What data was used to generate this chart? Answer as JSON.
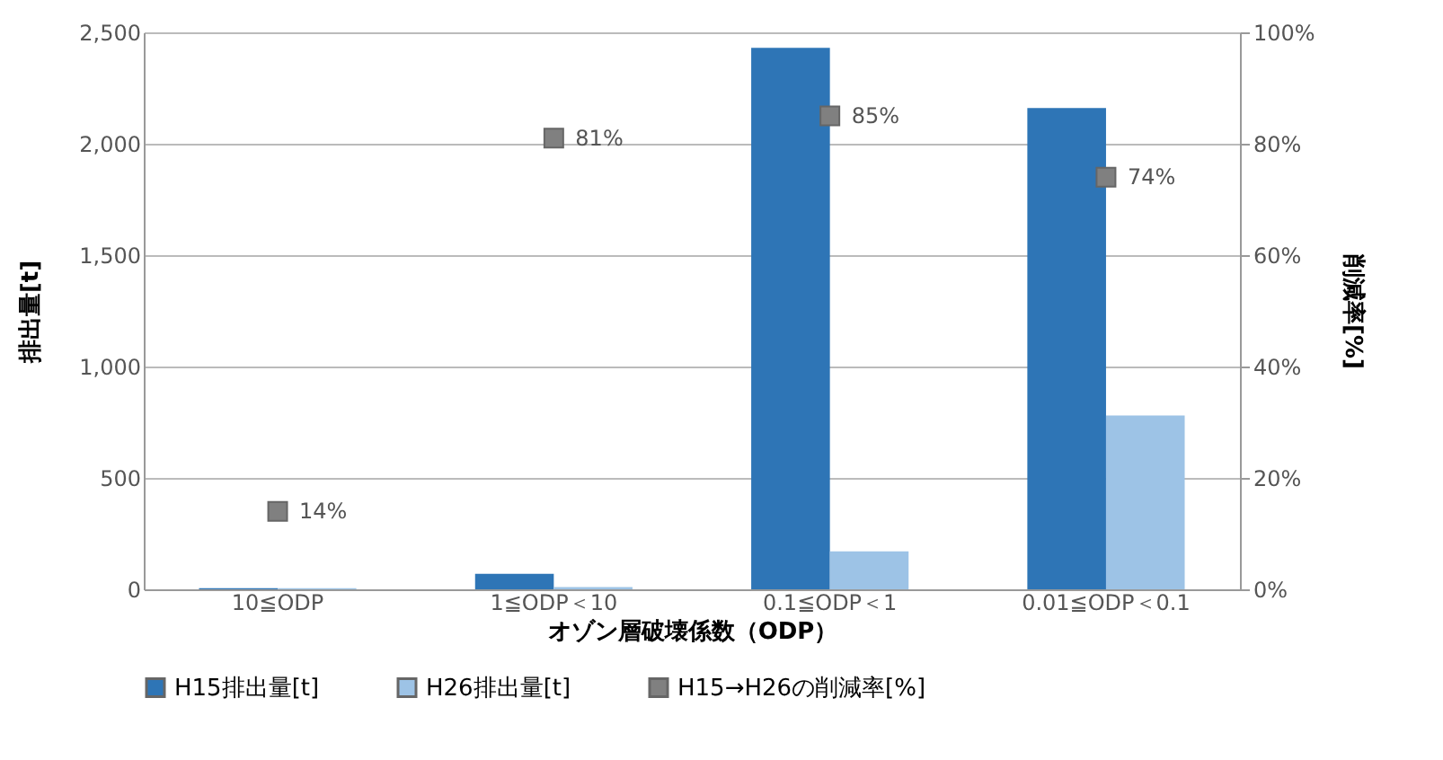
{
  "chart_data": {
    "type": "bar",
    "categories": [
      "10≦ODP",
      "1≦ODP＜10",
      "0.1≦ODP＜1",
      "0.01≦ODP＜0.1"
    ],
    "xlabel": "オゾン層破壊係数（ODP）",
    "ylabel": "排出量[t]",
    "y2label": "削減率[%]",
    "series": [
      {
        "name": "H15排出量[t]",
        "color": "#2e75b6",
        "values": [
          5,
          70,
          2430,
          2160
        ]
      },
      {
        "name": "H26排出量[t]",
        "color": "#9dc3e6",
        "values": [
          5,
          10,
          170,
          780
        ]
      },
      {
        "name": "H15→H26の削減率[%]",
        "type": "scatter",
        "axis": "y2",
        "color": "#808080",
        "values": [
          14,
          81,
          85,
          74
        ],
        "value_labels": [
          "14%",
          "81%",
          "85%",
          "74%"
        ]
      }
    ],
    "ylim": [
      0,
      2500
    ],
    "yticks": [
      {
        "value": 0,
        "label": "0"
      },
      {
        "value": 500,
        "label": "500"
      },
      {
        "value": 1000,
        "label": "1,000"
      },
      {
        "value": 1500,
        "label": "1,500"
      },
      {
        "value": 2000,
        "label": "2,000"
      },
      {
        "value": 2500,
        "label": "2,500"
      }
    ],
    "y2lim": [
      0,
      100
    ],
    "y2ticks": [
      {
        "value": 0,
        "label": "0%"
      },
      {
        "value": 20,
        "label": "20%"
      },
      {
        "value": 40,
        "label": "40%"
      },
      {
        "value": 60,
        "label": "60%"
      },
      {
        "value": 80,
        "label": "80%"
      },
      {
        "value": 100,
        "label": "100%"
      }
    ],
    "grid": "y",
    "legend": "bottom",
    "marker": "square"
  }
}
